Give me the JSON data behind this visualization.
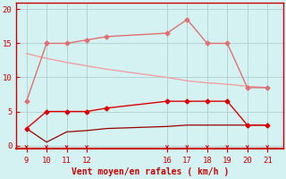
{
  "x": [
    9,
    10,
    11,
    12,
    13,
    16,
    17,
    18,
    19,
    20,
    21
  ],
  "line_pink_flat": [
    13.5,
    12.8,
    12.2,
    11.7,
    11.2,
    10.0,
    9.5,
    9.2,
    9.0,
    8.7,
    8.5
  ],
  "line_pink_markers": [
    6.5,
    15,
    15,
    15.5,
    16.0,
    16.5,
    18.5,
    15,
    15,
    8.5,
    8.5
  ],
  "line_red_markers": [
    2.5,
    5,
    5,
    5,
    5.5,
    6.5,
    6.5,
    6.5,
    6.5,
    3,
    3
  ],
  "line_red_thin": [
    2.5,
    0.5,
    2.0,
    2.2,
    2.5,
    2.8,
    3.0,
    3.0,
    3.0,
    3.0,
    3.0
  ],
  "color_pink": "#f0a0a0",
  "color_pink_dark": "#e07070",
  "color_red": "#dd0000",
  "color_red_dark": "#990000",
  "bg_color": "#d4f2f2",
  "grid_color": "#b0cece",
  "xlabel": "Vent moyen/en rafales ( km/h )",
  "xlabel_color": "#cc0000",
  "tick_color": "#cc0000",
  "axis_color": "#cc0000",
  "yticks": [
    0,
    5,
    10,
    15,
    20
  ],
  "xticks": [
    9,
    10,
    11,
    12,
    16,
    17,
    18,
    19,
    20,
    21
  ],
  "ylim": [
    -0.5,
    21
  ],
  "xlim": [
    8.5,
    21.8
  ]
}
